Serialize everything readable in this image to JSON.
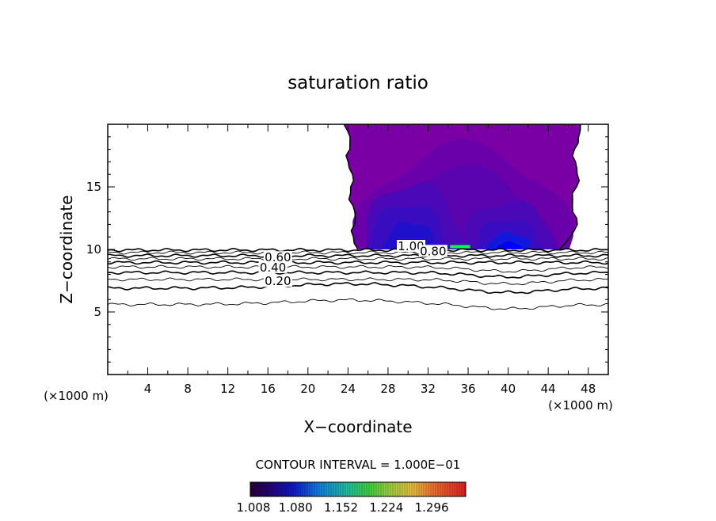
{
  "chart_data": {
    "type": "contour",
    "title": "saturation ratio",
    "xlabel": "X−coordinate",
    "ylabel": "Z−coordinate",
    "x_unit_left": "(×1000 m)",
    "x_unit_right": "(×1000 m)",
    "xlim": [
      0,
      50
    ],
    "ylim": [
      0,
      20
    ],
    "xticks": [
      "4",
      "8",
      "12",
      "16",
      "20",
      "24",
      "28",
      "32",
      "36",
      "40",
      "44",
      "48"
    ],
    "yticks": [
      "5",
      "10",
      "15"
    ],
    "contour_interval_label": "CONTOUR INTERVAL = 1.000E−01",
    "contour_line_labels": [
      {
        "text": "0.60",
        "x": 17.0,
        "z": 9.1
      },
      {
        "text": "0.40",
        "x": 16.5,
        "z": 8.3
      },
      {
        "text": "0.20",
        "x": 17.0,
        "z": 7.2
      },
      {
        "text": "1.00",
        "x": 30.3,
        "z": 10.0
      },
      {
        "text": "0.80",
        "x": 32.5,
        "z": 9.6
      }
    ],
    "contour_levels": [
      0.1,
      0.2,
      0.3,
      0.4,
      0.5,
      0.6,
      0.7,
      0.8,
      0.9,
      1.0
    ],
    "supersaturated_region": {
      "x_range": [
        23.8,
        47.0
      ],
      "z_range": [
        10.0,
        20.0
      ],
      "color_levels": [
        1.008,
        1.018,
        1.028,
        1.04,
        1.052,
        1.066,
        1.08,
        1.1
      ]
    },
    "colorbar": {
      "min": 1.008,
      "max": 1.35,
      "tick_labels": [
        "1.008",
        "1.080",
        "1.152",
        "1.224",
        "1.296"
      ]
    },
    "colors": {
      "base_fill": "#7a00a6",
      "cool_core": "#0000ff",
      "highlight_green": "#00ff40",
      "highlight_cyan": "#00e8ff"
    }
  }
}
